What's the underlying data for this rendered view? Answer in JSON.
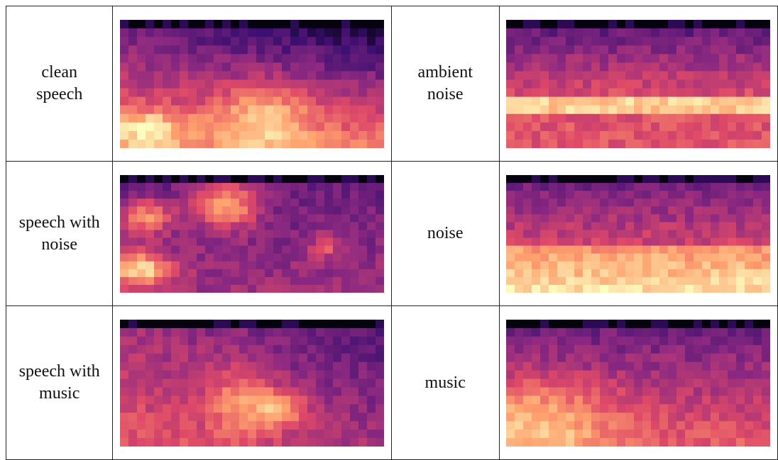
{
  "rows": [
    {
      "left": [
        "clean",
        "speech"
      ],
      "right": [
        "ambient",
        "noise"
      ]
    },
    {
      "left": [
        "speech with",
        "noise"
      ],
      "right": [
        "noise"
      ]
    },
    {
      "left": [
        "speech with",
        "music"
      ],
      "right": [
        "music"
      ]
    }
  ]
}
